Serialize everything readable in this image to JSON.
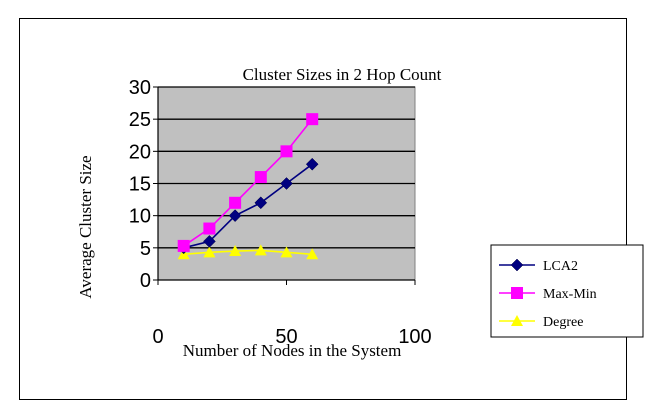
{
  "chart_data": {
    "type": "line",
    "title": "Cluster Sizes in 2 Hop Count",
    "xlabel": "Number of Nodes in the System",
    "ylabel": "Average Cluster Size",
    "xlim": [
      0,
      100
    ],
    "ylim": [
      0,
      30
    ],
    "xticks": [
      0,
      50,
      100
    ],
    "yticks": [
      0,
      5,
      10,
      15,
      20,
      25,
      30
    ],
    "grid": true,
    "legend_position": "right",
    "plot_background": "#c0c0c0",
    "series": [
      {
        "name": "LCA2",
        "color": "#000080",
        "marker": "diamond",
        "x": [
          10,
          20,
          30,
          40,
          50,
          60
        ],
        "y": [
          5,
          6,
          10,
          12,
          15,
          18
        ]
      },
      {
        "name": "Max-Min",
        "color": "#ff00ff",
        "marker": "square",
        "x": [
          10,
          20,
          30,
          40,
          50,
          60
        ],
        "y": [
          5.3,
          8,
          12,
          16,
          20,
          25
        ]
      },
      {
        "name": "Degree",
        "color": "#ffff00",
        "marker": "triangle",
        "x": [
          10,
          20,
          30,
          40,
          50,
          60
        ],
        "y": [
          4,
          4.3,
          4.5,
          4.6,
          4.3,
          4
        ]
      }
    ]
  }
}
